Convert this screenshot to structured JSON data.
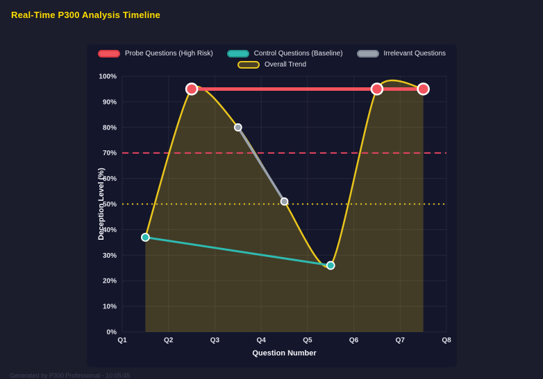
{
  "page": {
    "title": "Real-Time P300 Analysis Timeline",
    "footer": "Generated by P300 Professional - 10:05:45"
  },
  "colors": {
    "page_bg": "#1b1d2c",
    "panel_bg": "#14162b",
    "title": "#ffdd00",
    "grid": "rgba(255,255,255,0.07)",
    "tick_text": "#e0e3eb",
    "axis_label_text": "#f2f3f7",
    "legend_text": "#e3e5ec",
    "marker_border": "#ffffff",
    "footer_text": "#3d4056"
  },
  "chart_data": {
    "type": "line",
    "title": "Real-Time P300 Analysis Timeline",
    "xlabel": "Question Number",
    "ylabel": "Deception Level (%)",
    "xlim": [
      1,
      8
    ],
    "ylim": [
      0,
      100
    ],
    "grid": true,
    "legend_position": "top",
    "x_ticks": [
      {
        "v": 1,
        "label": "Q1"
      },
      {
        "v": 2,
        "label": "Q2"
      },
      {
        "v": 3,
        "label": "Q3"
      },
      {
        "v": 4,
        "label": "Q4"
      },
      {
        "v": 5,
        "label": "Q5"
      },
      {
        "v": 6,
        "label": "Q6"
      },
      {
        "v": 7,
        "label": "Q7"
      },
      {
        "v": 8,
        "label": "Q8"
      }
    ],
    "y_ticks": [
      {
        "v": 0,
        "label": "0%"
      },
      {
        "v": 10,
        "label": "10%"
      },
      {
        "v": 20,
        "label": "20%"
      },
      {
        "v": 30,
        "label": "30%"
      },
      {
        "v": 40,
        "label": "40%"
      },
      {
        "v": 50,
        "label": "50%"
      },
      {
        "v": 60,
        "label": "60%"
      },
      {
        "v": 70,
        "label": "70%"
      },
      {
        "v": 80,
        "label": "80%"
      },
      {
        "v": 90,
        "label": "90%"
      },
      {
        "v": 100,
        "label": "100%"
      }
    ],
    "series": [
      {
        "name": "Probe Questions (High Risk)",
        "color": "#f2545e",
        "swatch_fill": "#f2545e",
        "swatch_border": "#d93a45",
        "line_width": 5,
        "marker_radius": 8,
        "marker_stroke": 2.5,
        "smooth": false,
        "fill": false,
        "points": [
          [
            2.5,
            95
          ],
          [
            6.5,
            95
          ],
          [
            7.5,
            95
          ]
        ]
      },
      {
        "name": "Control Questions (Baseline)",
        "color": "#2fbab1",
        "swatch_fill": "#2fbab1",
        "swatch_border": "#23958d",
        "line_width": 3,
        "marker_radius": 5.5,
        "marker_stroke": 1.8,
        "smooth": false,
        "fill": false,
        "points": [
          [
            1.5,
            37
          ],
          [
            5.5,
            26
          ]
        ]
      },
      {
        "name": "Irrelevant Questions",
        "color": "#99a1ad",
        "swatch_fill": "#99a1ad",
        "swatch_border": "#7a828e",
        "line_width": 3.5,
        "marker_radius": 5,
        "marker_stroke": 1.8,
        "smooth": false,
        "fill": false,
        "points": [
          [
            3.5,
            80
          ],
          [
            4.5,
            51
          ]
        ]
      },
      {
        "name": "Overall Trend",
        "color": "#e9c51c",
        "swatch_fill": "rgba(233,197,28,0.25)",
        "swatch_border": "#e9c51c",
        "line_width": 2.5,
        "marker_radius": 0,
        "marker_stroke": 0,
        "smooth": true,
        "fill": true,
        "fill_color": "rgba(233,197,28,0.22)",
        "points": [
          [
            1.5,
            37
          ],
          [
            2.5,
            95
          ],
          [
            3.5,
            80
          ],
          [
            4.5,
            51
          ],
          [
            5.5,
            26
          ],
          [
            6.5,
            95
          ],
          [
            7.5,
            95
          ]
        ]
      }
    ],
    "reference_lines": [
      {
        "y": 70,
        "color": "#ea4560",
        "dash": "9 6",
        "width": 2,
        "name": "high-risk-threshold"
      },
      {
        "y": 50,
        "color": "#e9c51c",
        "dash": "2 5",
        "width": 2,
        "name": "baseline-threshold"
      }
    ]
  }
}
